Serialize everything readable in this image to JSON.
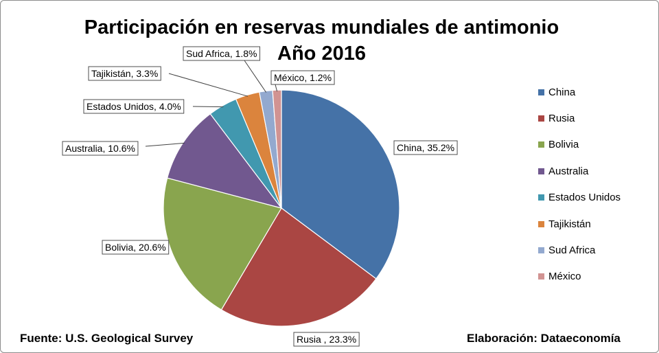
{
  "chart_data": {
    "type": "pie",
    "title_line1": "Participación en reservas mundiales de antimonio",
    "title_line2": "Año 2016",
    "slices": [
      {
        "name": "China",
        "value": 35.2,
        "label": "China, 35.2%",
        "color": "#4572A7"
      },
      {
        "name": "Rusia",
        "value": 23.3,
        "label": "Rusia , 23.3%",
        "color": "#AA4643"
      },
      {
        "name": "Bolivia",
        "value": 20.6,
        "label": "Bolivia, 20.6%",
        "color": "#89A54E"
      },
      {
        "name": "Australia",
        "value": 10.6,
        "label": "Australia, 10.6%",
        "color": "#71588F"
      },
      {
        "name": "Estados Unidos",
        "value": 4.0,
        "label": "Estados Unidos, 4.0%",
        "color": "#4198AF"
      },
      {
        "name": "Tajikistán",
        "value": 3.3,
        "label": "Tajikistán, 3.3%",
        "color": "#DB843D"
      },
      {
        "name": "Sud Africa",
        "value": 1.8,
        "label": "Sud Africa, 1.8%",
        "color": "#93A9CF"
      },
      {
        "name": "México",
        "value": 1.2,
        "label": "México, 1.2%",
        "color": "#D19392"
      }
    ],
    "legend_position": "right"
  },
  "footer": {
    "source": "Fuente: U.S. Geological Survey",
    "credit": "Elaboración: Dataeconomía"
  }
}
